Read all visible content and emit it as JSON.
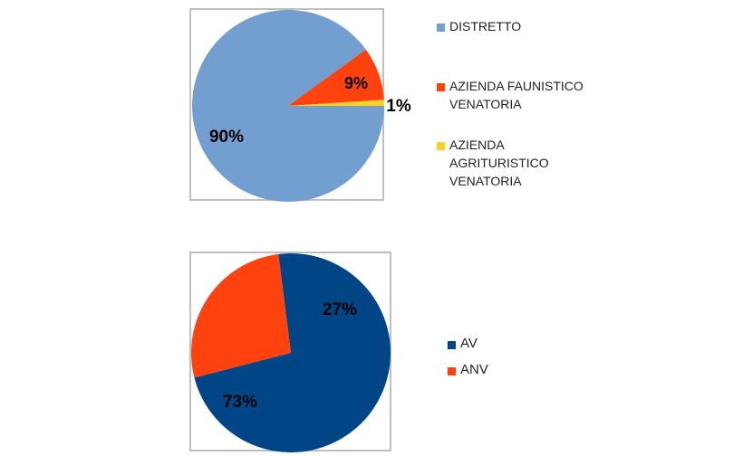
{
  "chart_data": [
    {
      "type": "pie",
      "title": "",
      "slices": [
        {
          "label": "DISTRETTO",
          "value": 90,
          "display": "90%",
          "color": "#729fcf"
        },
        {
          "label": "AZIENDA FAUNISTICO VENATORIA",
          "value": 9,
          "display": "9%",
          "color": "#ff420e"
        },
        {
          "label": "AZIENDA AGRITURISTICO VENATORIA",
          "value": 1,
          "display": "1%",
          "color": "#ffd320"
        }
      ],
      "legend": {
        "position": "right",
        "items": [
          {
            "lines": [
              "DISTRETTO"
            ],
            "color": "#729fcf"
          },
          {
            "lines": [
              "AZIENDA FAUNISTICO",
              "VENATORIA"
            ],
            "color": "#ff420e"
          },
          {
            "lines": [
              "AZIENDA",
              "AGRITURISTICO",
              "VENATORIA"
            ],
            "color": "#ffd320"
          }
        ]
      }
    },
    {
      "type": "pie",
      "title": "",
      "slices": [
        {
          "label": "AV",
          "value": 73,
          "display": "73%",
          "color": "#004586"
        },
        {
          "label": "ANV",
          "value": 27,
          "display": "27%",
          "color": "#ff420e"
        }
      ],
      "legend": {
        "position": "right",
        "items": [
          {
            "lines": [
              "AV"
            ],
            "color": "#004586"
          },
          {
            "lines": [
              "ANV"
            ],
            "color": "#ff420e"
          }
        ]
      }
    }
  ]
}
